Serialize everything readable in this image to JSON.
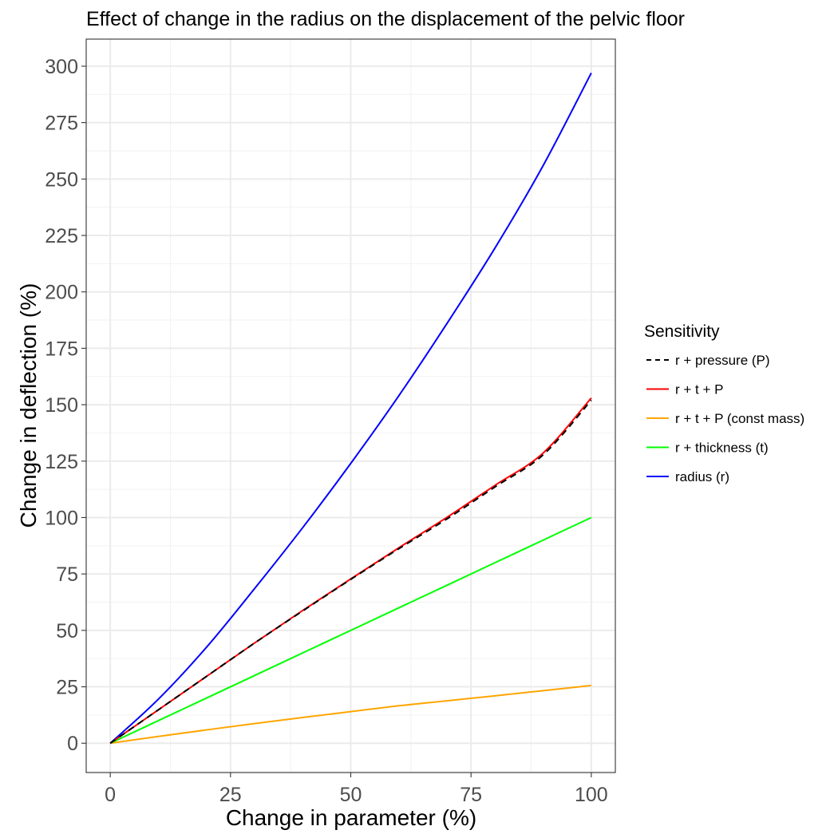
{
  "chart_data": {
    "type": "line",
    "title": "Effect of change in the radius on the displacement of the pelvic floor",
    "xlabel": "Change in parameter (%)",
    "ylabel": "Change in deflection (%)",
    "xlim": [
      -5,
      105
    ],
    "ylim": [
      -13,
      312
    ],
    "x_ticks": [
      0,
      25,
      50,
      75,
      100
    ],
    "y_ticks": [
      0,
      25,
      50,
      75,
      100,
      125,
      150,
      175,
      200,
      225,
      250,
      275,
      300
    ],
    "x_tick_labels": [
      "0",
      "25",
      "50",
      "75",
      "100"
    ],
    "y_tick_labels": [
      "0",
      "25",
      "50",
      "75",
      "100",
      "125",
      "150",
      "175",
      "200",
      "225",
      "250",
      "275",
      "300"
    ],
    "grid": true,
    "legend": {
      "title": "Sensitivity",
      "position": "right"
    },
    "x": [
      0,
      10,
      20,
      30,
      40,
      50,
      60,
      70,
      80,
      90,
      100
    ],
    "series": [
      {
        "name": "r + pressure (P)",
        "color": "#000000",
        "dash": "dashed",
        "values": [
          0,
          14.8,
          29.6,
          44.4,
          58.6,
          72.6,
          86.2,
          99.4,
          113.6,
          127.8,
          152
        ]
      },
      {
        "name": "r + t + P",
        "color": "#ff0000",
        "dash": "solid",
        "values": [
          0,
          14.8,
          29.6,
          44.4,
          58.8,
          72.8,
          86.6,
          100.1,
          114.3,
          128.6,
          153
        ]
      },
      {
        "name": "r + t + P (const mass)",
        "color": "#ffa500",
        "dash": "solid",
        "values": [
          0,
          3.0,
          5.9,
          8.7,
          11.4,
          14.0,
          16.6,
          18.8,
          21.0,
          23.3,
          25.6
        ]
      },
      {
        "name": "r + thickness (t)",
        "color": "#00ff00",
        "dash": "solid",
        "values": [
          0,
          10,
          20,
          30,
          40,
          50,
          60,
          70,
          80,
          90,
          100
        ]
      },
      {
        "name": "radius (r)",
        "color": "#0000ff",
        "dash": "solid",
        "values": [
          0,
          19.5,
          42.5,
          68.5,
          95.5,
          124,
          154,
          186,
          219.5,
          256,
          297
        ]
      }
    ]
  }
}
